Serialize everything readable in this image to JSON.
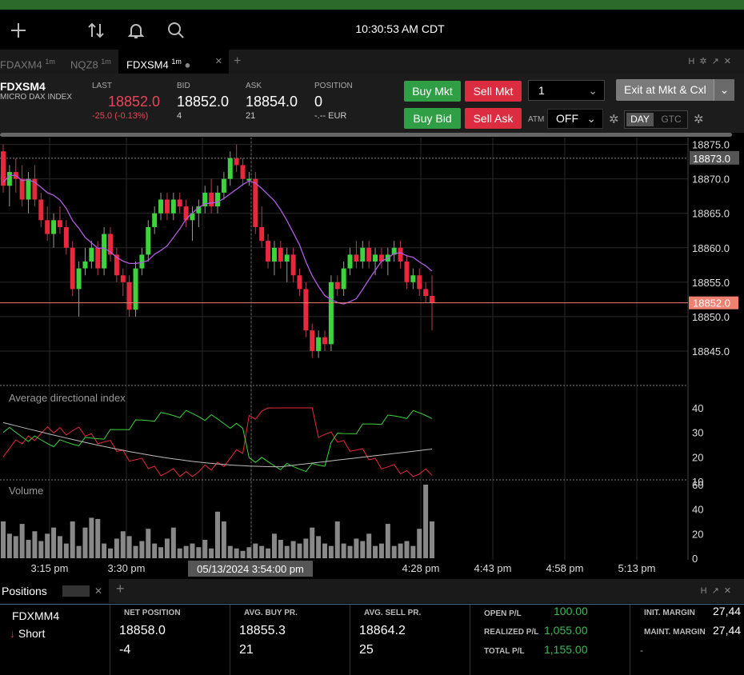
{
  "toolbar": {
    "clock": "10:30:53 AM CDT",
    "icons": [
      "plus-icon",
      "sort-arrows-icon",
      "bell-icon",
      "search-icon"
    ]
  },
  "tabs": [
    {
      "label": "FDAXM4",
      "interval": "1m"
    },
    {
      "label": "NQZ8",
      "interval": "1m"
    },
    {
      "label": "FDXSM4",
      "interval": "1m",
      "active": true
    }
  ],
  "tab_close": "✕",
  "tab_add": "+",
  "header": {
    "symbol": "FDXSM4",
    "description": "MICRO DAX INDEX",
    "last_label": "LAST",
    "last_value": "18852.0",
    "last_change": "-25.0 (-0.13%)",
    "bid_label": "BID",
    "bid_value": "18852.0",
    "bid_size": "4",
    "ask_label": "ASK",
    "ask_value": "18854.0",
    "ask_size": "21",
    "position_label": "POSITION",
    "position_value": "0",
    "position_currency": "-.-- EUR",
    "buy_mkt": "Buy Mkt",
    "sell_mkt": "Sell Mkt",
    "buy_bid": "Buy Bid",
    "sell_ask": "Sell Ask",
    "quantity": "1",
    "exit_btn": "Exit at Mkt & Cxl",
    "atm_label": "ATM",
    "atm_value": "OFF",
    "day": "DAY",
    "gtc": "GTC"
  },
  "colors": {
    "up": "#3cd33c",
    "down": "#e8283c",
    "ma": "#b05ce0",
    "price_line": "#f08070"
  },
  "chart_data": {
    "type": "candlestick",
    "price_axis": {
      "ticks": [
        "18875.0",
        "18870.0",
        "18865.0",
        "18860.0",
        "18855.0",
        "18850.0",
        "18845.0"
      ],
      "highlight": "18873.0",
      "current": "18852.0",
      "range": [
        18840,
        18876
      ]
    },
    "adx": {
      "title": "Average directional index",
      "ticks": [
        "40",
        "30",
        "20",
        "10"
      ]
    },
    "volume": {
      "title": "Volume",
      "ticks": [
        "60",
        "40",
        "20",
        "0"
      ]
    },
    "time_ticks": [
      "3:15 pm",
      "3:30 pm",
      "4:28 pm",
      "4:43 pm",
      "4:58 pm",
      "5:13 pm"
    ],
    "crosshair_label": "05/13/2024 3:54:00 pm",
    "candles": [
      [
        18874,
        18875,
        18868,
        18869
      ],
      [
        18869,
        18872,
        18866,
        18871
      ],
      [
        18871,
        18873,
        18868,
        18870
      ],
      [
        18870,
        18872,
        18866,
        18867
      ],
      [
        18867,
        18871,
        18865,
        18870
      ],
      [
        18870,
        18872,
        18866,
        18867
      ],
      [
        18867,
        18868,
        18863,
        18864
      ],
      [
        18864,
        18866,
        18861,
        18862
      ],
      [
        18862,
        18865,
        18860,
        18864
      ],
      [
        18864,
        18866,
        18862,
        18863
      ],
      [
        18863,
        18864,
        18859,
        18860
      ],
      [
        18860,
        18861,
        18853,
        18854
      ],
      [
        18854,
        18858,
        18850,
        18857
      ],
      [
        18857,
        18860,
        18856,
        18858
      ],
      [
        18858,
        18861,
        18857,
        18860
      ],
      [
        18860,
        18861,
        18856,
        18857
      ],
      [
        18857,
        18863,
        18856,
        18862
      ],
      [
        18862,
        18863,
        18858,
        18859
      ],
      [
        18859,
        18860,
        18855,
        18856
      ],
      [
        18856,
        18857,
        18853,
        18855
      ],
      [
        18855,
        18856,
        18850,
        18851
      ],
      [
        18851,
        18858,
        18850,
        18857
      ],
      [
        18857,
        18860,
        18856,
        18859
      ],
      [
        18859,
        18864,
        18858,
        18863
      ],
      [
        18863,
        18866,
        18862,
        18865
      ],
      [
        18865,
        18868,
        18864,
        18867
      ],
      [
        18867,
        18868,
        18864,
        18865
      ],
      [
        18865,
        18868,
        18864,
        18867
      ],
      [
        18867,
        18868,
        18865,
        18866
      ],
      [
        18866,
        18867,
        18863,
        18864
      ],
      [
        18864,
        18866,
        18861,
        18865
      ],
      [
        18865,
        18867,
        18863,
        18866
      ],
      [
        18866,
        18869,
        18865,
        18868
      ],
      [
        18868,
        18870,
        18865,
        18866
      ],
      [
        18866,
        18869,
        18865,
        18868
      ],
      [
        18868,
        18871,
        18867,
        18870
      ],
      [
        18870,
        18874,
        18869,
        18873
      ],
      [
        18873,
        18875,
        18871,
        18872
      ],
      [
        18872,
        18873,
        18869,
        18870
      ],
      [
        18870,
        18871,
        18869,
        18870
      ],
      [
        18870,
        18871,
        18862,
        18863
      ],
      [
        18863,
        18866,
        18860,
        18861
      ],
      [
        18861,
        18862,
        18857,
        18858
      ],
      [
        18858,
        18861,
        18856,
        18860
      ],
      [
        18860,
        18861,
        18857,
        18858
      ],
      [
        18858,
        18860,
        18855,
        18859
      ],
      [
        18859,
        18860,
        18855,
        18856
      ],
      [
        18856,
        18857,
        18853,
        18854
      ],
      [
        18854,
        18855,
        18847,
        18848
      ],
      [
        18848,
        18849,
        18844,
        18845
      ],
      [
        18845,
        18848,
        18844,
        18847
      ],
      [
        18847,
        18848,
        18845,
        18846
      ],
      [
        18846,
        18856,
        18845,
        18855
      ],
      [
        18855,
        18856,
        18853,
        18854
      ],
      [
        18854,
        18858,
        18853,
        18857
      ],
      [
        18857,
        18860,
        18856,
        18859
      ],
      [
        18859,
        18861,
        18857,
        18858
      ],
      [
        18858,
        18861,
        18857,
        18860
      ],
      [
        18860,
        18861,
        18857,
        18858
      ],
      [
        18858,
        18860,
        18856,
        18859
      ],
      [
        18859,
        18860,
        18857,
        18858
      ],
      [
        18858,
        18860,
        18856,
        18859
      ],
      [
        18859,
        18861,
        18858,
        18860
      ],
      [
        18860,
        18861,
        18857,
        18858
      ],
      [
        18858,
        18859,
        18854,
        18855
      ],
      [
        18855,
        18857,
        18854,
        18856
      ],
      [
        18856,
        18857,
        18853,
        18854
      ],
      [
        18854,
        18855,
        18852,
        18853
      ],
      [
        18853,
        18856,
        18848,
        18852
      ]
    ],
    "volumes": [
      30,
      20,
      18,
      28,
      15,
      22,
      14,
      20,
      25,
      18,
      12,
      30,
      10,
      25,
      33,
      32,
      12,
      8,
      16,
      22,
      18,
      10,
      14,
      24,
      12,
      9,
      16,
      25,
      8,
      10,
      12,
      9,
      15,
      8,
      38,
      30,
      10,
      8,
      6,
      9,
      12,
      10,
      8,
      20,
      15,
      10,
      14,
      12,
      16,
      25,
      18,
      12,
      10,
      30,
      12,
      10,
      16,
      14,
      20,
      10,
      12,
      28,
      10,
      12,
      14,
      10,
      24,
      60,
      30
    ]
  },
  "positions_panel": {
    "tab_label": "Positions",
    "symbol": "FDXMM4",
    "side": "Short",
    "net_position_label": "NET POSITION",
    "net_position_price": "18858.0",
    "net_position_qty": "-4",
    "avg_buy_label": "AVG. BUY PR.",
    "avg_buy_price": "18855.3",
    "avg_buy_qty": "21",
    "avg_sell_label": "AVG. SELL PR.",
    "avg_sell_price": "18864.2",
    "avg_sell_qty": "25",
    "open_pl_label": "OPEN P/L",
    "open_pl": "100.00",
    "realized_pl_label": "REALIZED P/L",
    "realized_pl": "1,055.00",
    "total_pl_label": "TOTAL P/L",
    "total_pl": "1,155.00",
    "init_margin_label": "INIT. MARGIN",
    "init_margin": "27,44",
    "maint_margin_label": "MAINT. MARGIN",
    "maint_margin": "27,44",
    "margin_dash": "-"
  }
}
